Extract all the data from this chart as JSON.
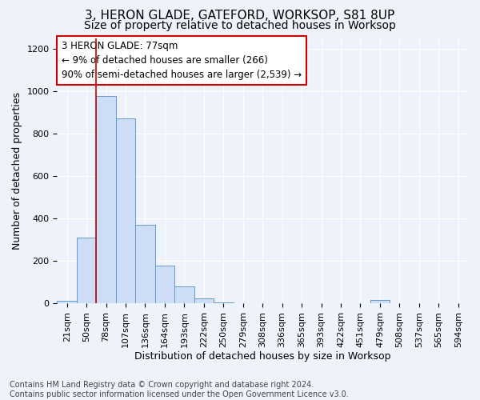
{
  "title": "3, HERON GLADE, GATEFORD, WORKSOP, S81 8UP",
  "subtitle": "Size of property relative to detached houses in Worksop",
  "xlabel": "Distribution of detached houses by size in Worksop",
  "ylabel": "Number of detached properties",
  "categories": [
    "21sqm",
    "50sqm",
    "78sqm",
    "107sqm",
    "136sqm",
    "164sqm",
    "193sqm",
    "222sqm",
    "250sqm",
    "279sqm",
    "308sqm",
    "336sqm",
    "365sqm",
    "393sqm",
    "422sqm",
    "451sqm",
    "479sqm",
    "508sqm",
    "537sqm",
    "565sqm",
    "594sqm"
  ],
  "values": [
    10,
    310,
    975,
    870,
    370,
    178,
    80,
    22,
    5,
    2,
    1,
    0,
    0,
    0,
    0,
    0,
    15,
    0,
    0,
    0,
    0
  ],
  "bar_color": "#ccddf5",
  "bar_edge_color": "#6699cc",
  "red_line_x": 2,
  "red_line_color": "#cc0000",
  "annotation_text": "3 HERON GLADE: 77sqm\n← 9% of detached houses are smaller (266)\n90% of semi-detached houses are larger (2,539) →",
  "annotation_box_facecolor": "#ffffff",
  "annotation_box_edgecolor": "#cc0000",
  "ylim": [
    0,
    1250
  ],
  "yticks": [
    0,
    200,
    400,
    600,
    800,
    1000,
    1200
  ],
  "background_color": "#eef2fb",
  "grid_color": "#ffffff",
  "title_fontsize": 11,
  "subtitle_fontsize": 10,
  "xlabel_fontsize": 9,
  "ylabel_fontsize": 9,
  "tick_fontsize": 8,
  "annotation_fontsize": 8.5,
  "footer": "Contains HM Land Registry data © Crown copyright and database right 2024.\nContains public sector information licensed under the Open Government Licence v3.0.",
  "footer_fontsize": 7
}
